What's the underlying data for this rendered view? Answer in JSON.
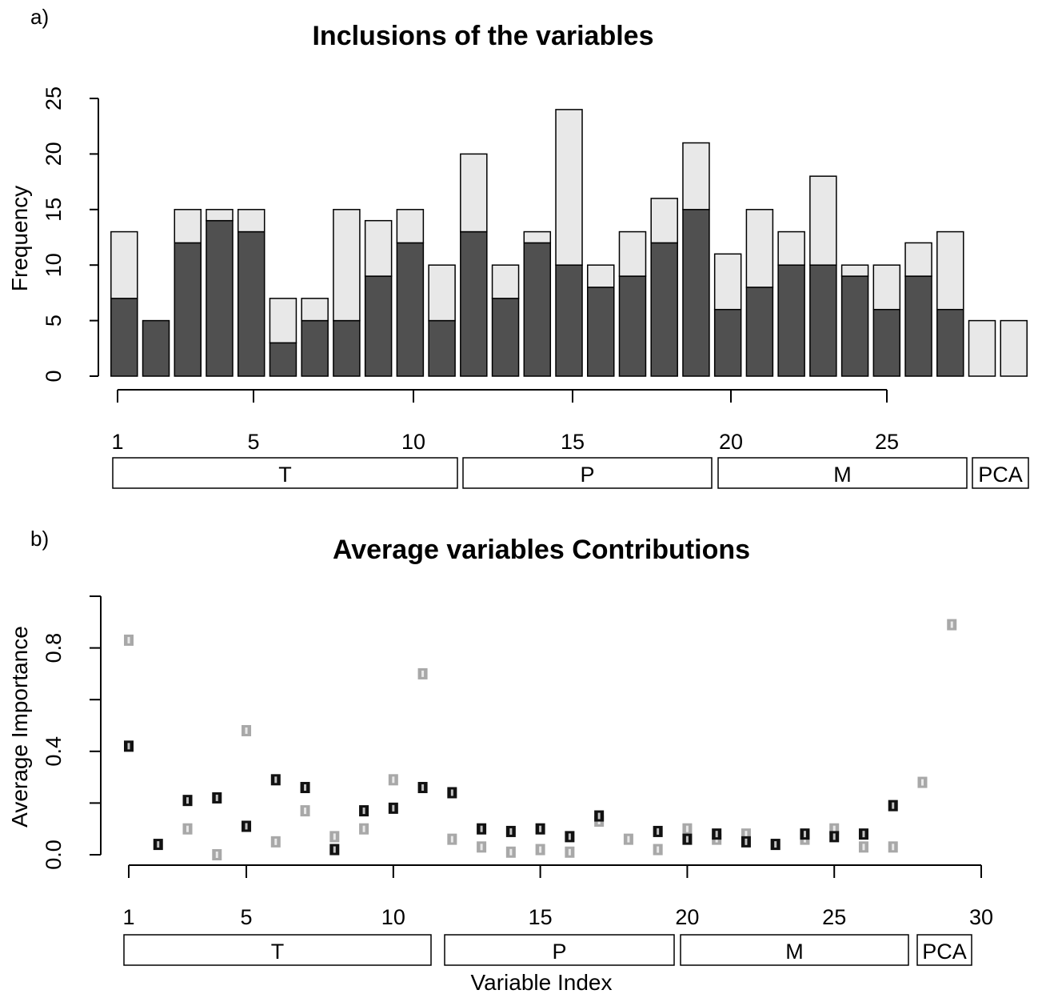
{
  "panels": [
    {
      "label": "a)",
      "chart_data": {
        "type": "bar",
        "title": "Inclusions of the variables",
        "ylabel": "Frequency",
        "xlabel": "",
        "ylim": [
          0,
          25
        ],
        "yticks": [
          "0",
          "5",
          "10",
          "15",
          "20",
          "25"
        ],
        "xticks": [
          "1",
          "5",
          "10",
          "15",
          "20",
          "25"
        ],
        "categories": [
          1,
          2,
          3,
          4,
          5,
          6,
          7,
          8,
          9,
          10,
          11,
          12,
          13,
          14,
          15,
          16,
          17,
          18,
          19,
          20,
          21,
          22,
          23,
          24,
          25,
          26,
          27,
          28,
          29
        ],
        "stacked": true,
        "colors": {
          "dark": "#505050",
          "light": "#e8e8e8"
        },
        "series": [
          {
            "values": [
              7,
              5,
              12,
              14,
              13,
              3,
              5,
              5,
              9,
              12,
              5,
              13,
              7,
              12,
              10,
              8,
              9,
              12,
              15,
              6,
              8,
              10,
              10,
              9,
              6,
              9,
              6,
              0,
              0
            ]
          },
          {
            "values": [
              6,
              0,
              3,
              1,
              2,
              4,
              2,
              10,
              5,
              3,
              5,
              7,
              3,
              1,
              14,
              2,
              4,
              4,
              6,
              5,
              7,
              3,
              8,
              1,
              4,
              3,
              7,
              5,
              5
            ]
          }
        ],
        "groups": [
          {
            "label": "T",
            "from": 1,
            "to": 11
          },
          {
            "label": "P",
            "from": 12,
            "to": 19
          },
          {
            "label": "M",
            "from": 20,
            "to": 27
          },
          {
            "label": "PCA",
            "from": 28,
            "to": 29
          }
        ]
      }
    },
    {
      "label": "b)",
      "chart_data": {
        "type": "scatter",
        "title": "Average variables Contributions",
        "ylabel": "Average Importance",
        "xlabel": "Variable Index",
        "ylim": [
          0,
          1
        ],
        "xlim": [
          1,
          30
        ],
        "yticks": [
          "0.0",
          "0.4",
          "0.8"
        ],
        "xticks": [
          "1",
          "5",
          "10",
          "15",
          "20",
          "25",
          "30"
        ],
        "colors": {
          "dark": "#111111",
          "light": "#a8a8a8"
        },
        "series": [
          {
            "x": [
              1,
              2,
              3,
              4,
              5,
              6,
              7,
              8,
              9,
              10,
              11,
              12,
              13,
              14,
              15,
              16,
              17,
              19,
              20,
              21,
              22,
              23,
              24,
              25,
              26,
              27
            ],
            "y": [
              0.42,
              0.04,
              0.21,
              0.22,
              0.11,
              0.29,
              0.26,
              0.02,
              0.17,
              0.18,
              0.26,
              0.24,
              0.1,
              0.09,
              0.1,
              0.07,
              0.15,
              0.09,
              0.06,
              0.08,
              0.05,
              0.04,
              0.08,
              0.07,
              0.08,
              0.19
            ]
          },
          {
            "x": [
              1,
              3,
              4,
              5,
              6,
              7,
              8,
              9,
              10,
              11,
              12,
              13,
              14,
              15,
              16,
              17,
              18,
              19,
              20,
              21,
              22,
              23,
              24,
              25,
              26,
              27,
              28,
              29
            ],
            "y": [
              0.83,
              0.1,
              0.0,
              0.48,
              0.05,
              0.17,
              0.07,
              0.1,
              0.29,
              0.7,
              0.06,
              0.03,
              0.01,
              0.02,
              0.01,
              0.13,
              0.06,
              0.02,
              0.1,
              0.06,
              0.08,
              0.04,
              0.06,
              0.1,
              0.03,
              0.03,
              0.28,
              0.89
            ]
          }
        ],
        "groups": [
          {
            "label": "T",
            "from": 1,
            "to": 11
          },
          {
            "label": "P",
            "from": 12,
            "to": 19
          },
          {
            "label": "M",
            "from": 20,
            "to": 27
          },
          {
            "label": "PCA",
            "from": 28,
            "to": 29
          }
        ]
      }
    }
  ]
}
